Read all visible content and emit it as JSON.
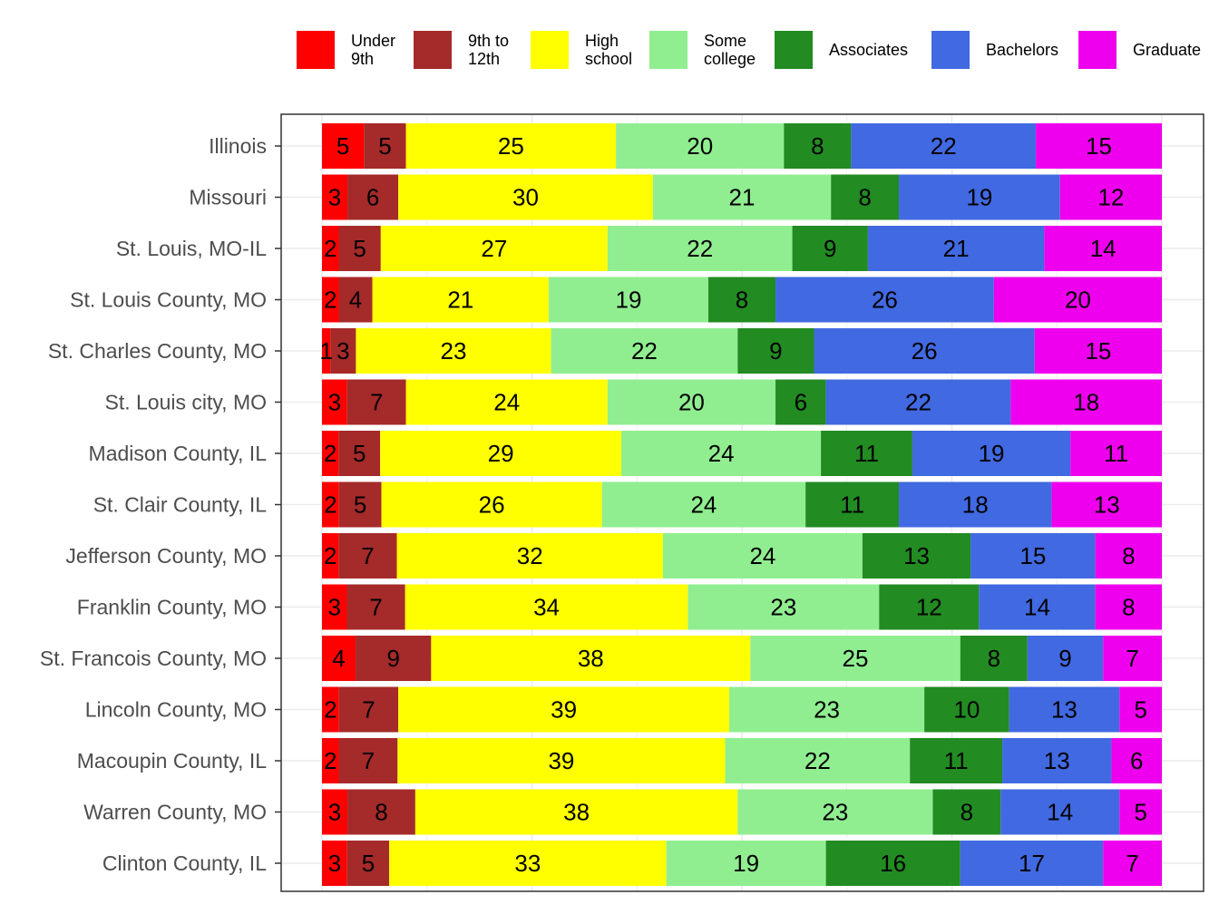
{
  "chart_data": {
    "type": "bar",
    "orientation": "horizontal",
    "stacked": true,
    "normalized": true,
    "grid": true,
    "legend_position": "top",
    "categories": [
      "Illinois",
      "Missouri",
      "St. Louis, MO-IL",
      "St. Louis County, MO",
      "St. Charles County, MO",
      "St. Louis city, MO",
      "Madison County, IL",
      "St. Clair County, IL",
      "Jefferson County, MO",
      "Franklin County, MO",
      "St. Francois County, MO",
      "Lincoln County, MO",
      "Macoupin County, IL",
      "Warren County, MO",
      "Clinton County, IL"
    ],
    "series": [
      {
        "name": "Under 9th",
        "legend_lines": [
          "Under",
          "9th"
        ],
        "color": "#ff0000",
        "values": [
          5,
          3,
          2,
          2,
          1,
          3,
          2,
          2,
          2,
          3,
          4,
          2,
          2,
          3,
          3
        ]
      },
      {
        "name": "9th to 12th",
        "legend_lines": [
          "9th to",
          "12th"
        ],
        "color": "#a52a2a",
        "values": [
          5,
          6,
          5,
          4,
          3,
          7,
          5,
          5,
          7,
          7,
          9,
          7,
          7,
          8,
          5
        ]
      },
      {
        "name": "High school",
        "legend_lines": [
          "High",
          "school"
        ],
        "color": "#ffff00",
        "values": [
          25,
          30,
          27,
          21,
          23,
          24,
          29,
          26,
          32,
          34,
          38,
          39,
          39,
          38,
          33
        ]
      },
      {
        "name": "Some college",
        "legend_lines": [
          "Some",
          "college"
        ],
        "color": "#90ee90",
        "values": [
          20,
          21,
          22,
          19,
          22,
          20,
          24,
          24,
          24,
          23,
          25,
          23,
          22,
          23,
          19
        ]
      },
      {
        "name": "Associates",
        "legend_lines": [
          "Associates"
        ],
        "color": "#228b22",
        "values": [
          8,
          8,
          9,
          8,
          9,
          6,
          11,
          11,
          13,
          12,
          8,
          10,
          11,
          8,
          16
        ]
      },
      {
        "name": "Bachelors",
        "legend_lines": [
          "Bachelors"
        ],
        "color": "#4169e1",
        "values": [
          22,
          19,
          21,
          26,
          26,
          22,
          19,
          18,
          15,
          14,
          9,
          13,
          13,
          14,
          17
        ]
      },
      {
        "name": "Graduate",
        "legend_lines": [
          "Graduate"
        ],
        "color": "#ee00ee",
        "values": [
          15,
          12,
          14,
          20,
          15,
          18,
          11,
          13,
          8,
          8,
          7,
          5,
          6,
          5,
          7
        ]
      }
    ]
  }
}
